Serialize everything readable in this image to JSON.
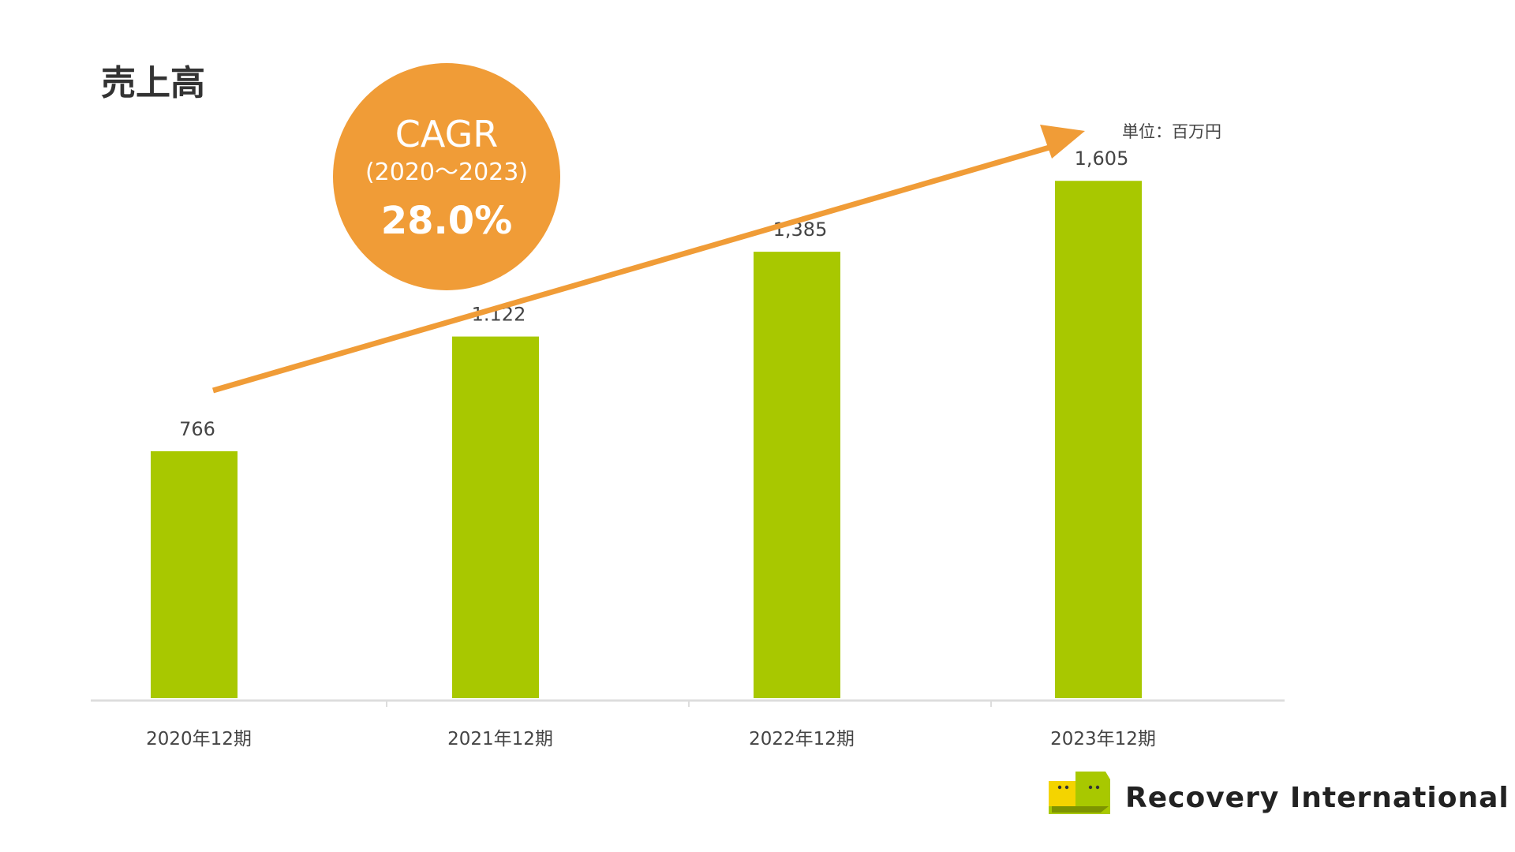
{
  "chart_data": {
    "type": "bar",
    "title": "売上高",
    "unit_label": "単位：百万円",
    "categories": [
      "2020年12期",
      "2021年12期",
      "2022年12期",
      "2023年12期"
    ],
    "values": [
      766,
      1122,
      1385,
      1605
    ],
    "data_labels": [
      "766",
      "1.122",
      "1,385",
      "1,605"
    ],
    "ylim": [
      0,
      1750
    ],
    "grid": false,
    "legend": "none",
    "annotation": {
      "title": "CAGR",
      "period": "(2020〜2023)",
      "value": "28.0%"
    }
  },
  "logo": {
    "text": "Recovery International"
  },
  "colors": {
    "bar": "#a8c800",
    "accent": "#f09c37",
    "axis": "#dddddd",
    "logo_yellow": "#f4d400",
    "logo_green": "#a8c800"
  }
}
